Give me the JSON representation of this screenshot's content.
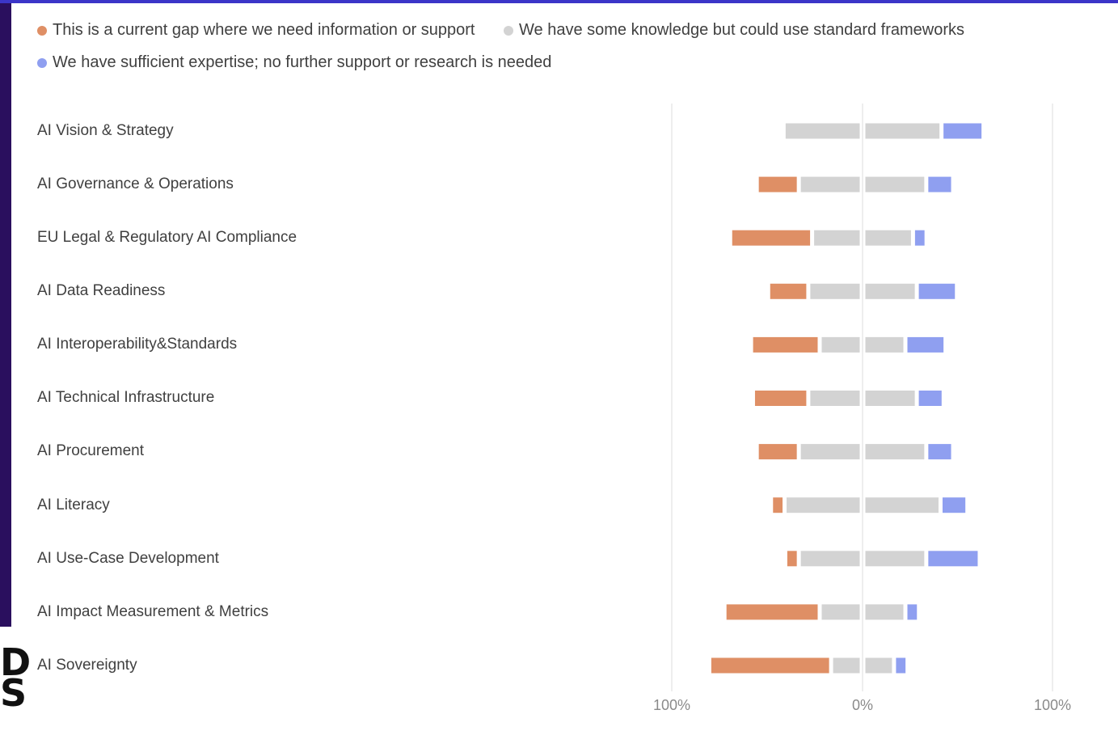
{
  "colors": {
    "gap": "#df8f65",
    "some_knowledge": "#d3d3d3",
    "sufficient": "#8f9ff0",
    "axis_line": "#e3e3e3"
  },
  "legend": [
    {
      "label": "This is a current gap where we need information or support",
      "color": "#df8f65"
    },
    {
      "label": "We have some knowledge but could use standard frameworks",
      "color": "#d3d3d3"
    },
    {
      "label": "We have sufficient expertise; no further support or research is needed",
      "color": "#8f9ff0"
    }
  ],
  "chart_data": {
    "type": "bar",
    "orientation": "horizontal-diverging",
    "title": "",
    "xlim": [
      -100,
      100
    ],
    "x_tick_labels": [
      "100%",
      "0%",
      "100%"
    ],
    "legend_position": "top",
    "grid": false,
    "categories": [
      "AI Vision & Strategy",
      "AI Governance & Operations",
      "EU Legal & Regulatory AI Compliance",
      "AI Data Readiness",
      "AI Interoperability&Standards",
      "AI Technical Infrastructure",
      "AI Procurement",
      "AI Literacy",
      "AI Use-Case Development",
      "AI Impact Measurement & Metrics",
      "AI Sovereignty"
    ],
    "series": [
      {
        "name": "This is a current gap where we need information or support",
        "side": "left",
        "values": [
          0,
          20,
          41,
          19,
          34,
          27,
          20,
          5,
          5,
          48,
          62
        ]
      },
      {
        "name": "We have some knowledge but could use standard frameworks",
        "side": "split",
        "values": [
          78,
          62,
          48,
          52,
          40,
          52,
          62,
          77,
          62,
          40,
          28
        ]
      },
      {
        "name": "We have sufficient expertise; no further support or research is needed",
        "side": "right",
        "values": [
          20,
          12,
          5,
          19,
          19,
          12,
          12,
          12,
          26,
          5,
          5
        ]
      }
    ]
  }
}
